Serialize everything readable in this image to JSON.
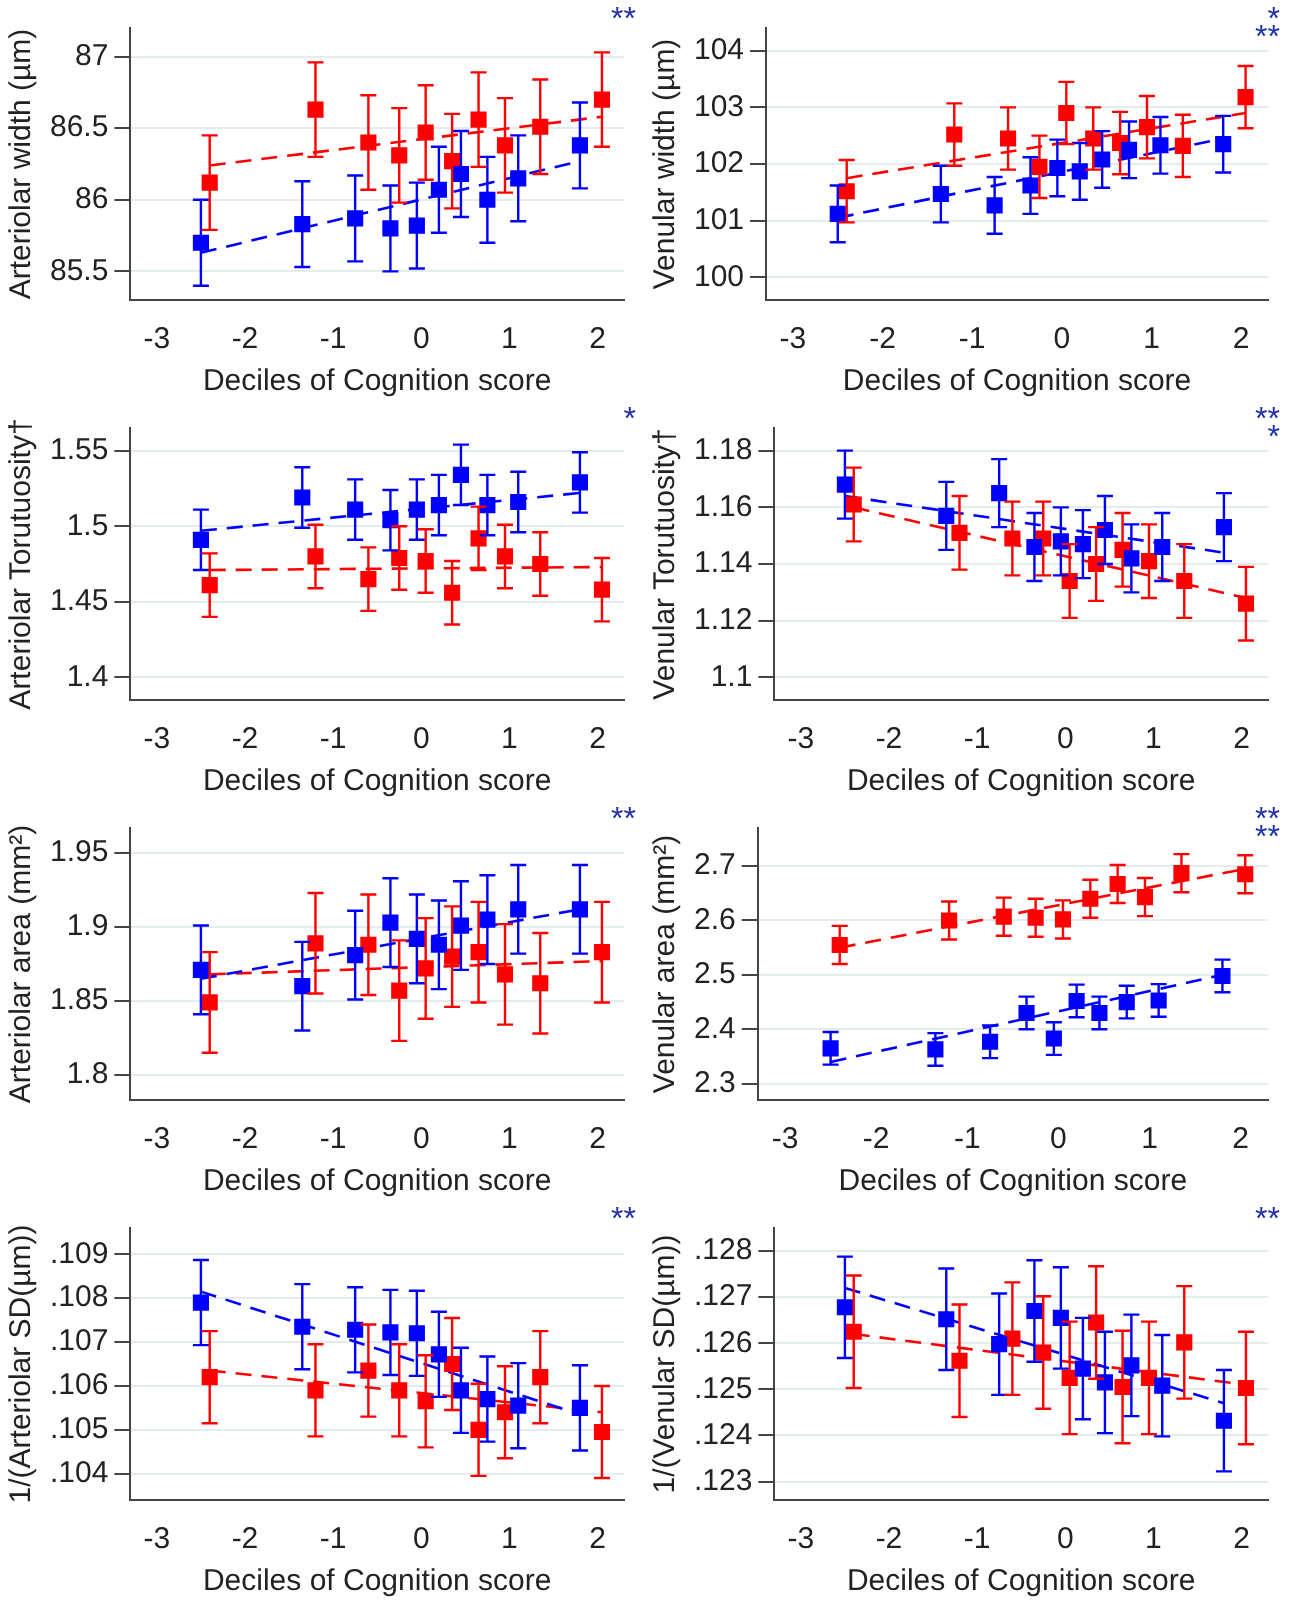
{
  "chart_data": [
    {
      "type": "scatter",
      "xlabel": "Deciles of Cognition score",
      "ylabel": "Arteriolar width (µm)",
      "xlim": [
        -3.3,
        2.3
      ],
      "xticks": [
        -3,
        -2,
        -1,
        0,
        1,
        2
      ],
      "ylim": [
        85.3,
        87.2
      ],
      "yticks": [
        85.5,
        86,
        86.5,
        87
      ],
      "grid": "y",
      "marker": "square",
      "legend": false,
      "annotations": [
        "**"
      ],
      "series": [
        {
          "color": "#0000ff",
          "x": [
            -2.5,
            -1.35,
            -0.75,
            -0.35,
            -0.05,
            0.2,
            0.45,
            0.75,
            1.1,
            1.8
          ],
          "values": [
            85.7,
            85.83,
            85.87,
            85.8,
            85.82,
            86.07,
            86.18,
            86.0,
            86.15,
            86.38
          ],
          "errors": [
            0.3,
            0.3,
            0.3,
            0.3,
            0.3,
            0.3,
            0.3,
            0.3,
            0.3,
            0.3
          ]
        },
        {
          "color": "#ff0000",
          "x": [
            -2.4,
            -1.2,
            -0.6,
            -0.25,
            0.05,
            0.35,
            0.65,
            0.95,
            1.35,
            2.05
          ],
          "values": [
            86.12,
            86.63,
            86.4,
            86.31,
            86.47,
            86.27,
            86.56,
            86.38,
            86.51,
            86.7
          ],
          "errors": [
            0.33,
            0.33,
            0.33,
            0.33,
            0.33,
            0.33,
            0.33,
            0.33,
            0.33,
            0.33
          ]
        },
        {
          "type": "line",
          "color": "#0000ff",
          "line_style": "dashed",
          "marker": "none",
          "x": [
            -2.5,
            1.8
          ],
          "values": [
            85.63,
            86.27
          ]
        },
        {
          "type": "line",
          "color": "#ff0000",
          "line_style": "dashed",
          "marker": "none",
          "x": [
            -2.4,
            2.05
          ],
          "values": [
            86.24,
            86.58
          ]
        }
      ]
    },
    {
      "type": "scatter",
      "xlabel": "Deciles of Cognition score",
      "ylabel": "Venular width (µm)",
      "xlim": [
        -3.3,
        2.3
      ],
      "xticks": [
        -3,
        -2,
        -1,
        0,
        1,
        2
      ],
      "ylim": [
        99.6,
        104.4
      ],
      "yticks": [
        100,
        101,
        102,
        103,
        104
      ],
      "grid": "y",
      "marker": "square",
      "legend": false,
      "annotations": [
        "*",
        "**"
      ],
      "series": [
        {
          "color": "#0000ff",
          "x": [
            -2.5,
            -1.35,
            -0.75,
            -0.35,
            -0.05,
            0.2,
            0.45,
            0.75,
            1.1,
            1.8
          ],
          "values": [
            101.12,
            101.47,
            101.27,
            101.62,
            101.93,
            101.87,
            102.08,
            102.25,
            102.33,
            102.35
          ],
          "errors": [
            0.5,
            0.5,
            0.5,
            0.5,
            0.5,
            0.5,
            0.5,
            0.5,
            0.5,
            0.5
          ]
        },
        {
          "color": "#ff0000",
          "x": [
            -2.4,
            -1.2,
            -0.6,
            -0.25,
            0.05,
            0.35,
            0.65,
            0.95,
            1.35,
            2.05
          ],
          "values": [
            101.52,
            102.52,
            102.45,
            101.95,
            102.9,
            102.45,
            102.37,
            102.65,
            102.32,
            103.18
          ],
          "errors": [
            0.55,
            0.55,
            0.55,
            0.55,
            0.55,
            0.55,
            0.55,
            0.55,
            0.55,
            0.55
          ]
        },
        {
          "type": "line",
          "color": "#0000ff",
          "line_style": "dashed",
          "marker": "none",
          "x": [
            -2.5,
            1.8
          ],
          "values": [
            101.05,
            102.45
          ]
        },
        {
          "type": "line",
          "color": "#ff0000",
          "line_style": "dashed",
          "marker": "none",
          "x": [
            -2.4,
            2.05
          ],
          "values": [
            101.75,
            102.9
          ]
        }
      ]
    },
    {
      "type": "scatter",
      "xlabel": "Deciles of Cognition score",
      "ylabel": "Arteriolar Torutuosity†",
      "xlim": [
        -3.3,
        2.3
      ],
      "xticks": [
        -3,
        -2,
        -1,
        0,
        1,
        2
      ],
      "ylim": [
        1.385,
        1.565
      ],
      "yticks": [
        1.4,
        1.45,
        1.5,
        1.55
      ],
      "grid": "y",
      "marker": "square",
      "legend": false,
      "annotations": [
        "*"
      ],
      "series": [
        {
          "color": "#0000ff",
          "x": [
            -2.5,
            -1.35,
            -0.75,
            -0.35,
            -0.05,
            0.2,
            0.45,
            0.75,
            1.1,
            1.8
          ],
          "values": [
            1.491,
            1.519,
            1.511,
            1.504,
            1.511,
            1.514,
            1.534,
            1.514,
            1.516,
            1.529
          ],
          "errors": [
            0.02,
            0.02,
            0.02,
            0.02,
            0.02,
            0.02,
            0.02,
            0.02,
            0.02,
            0.02
          ]
        },
        {
          "color": "#ff0000",
          "x": [
            -2.4,
            -1.2,
            -0.6,
            -0.25,
            0.05,
            0.35,
            0.65,
            0.95,
            1.35,
            2.05
          ],
          "values": [
            1.461,
            1.48,
            1.465,
            1.479,
            1.477,
            1.456,
            1.492,
            1.48,
            1.475,
            1.458
          ],
          "errors": [
            0.021,
            0.021,
            0.021,
            0.021,
            0.021,
            0.021,
            0.021,
            0.021,
            0.021,
            0.021
          ]
        },
        {
          "type": "line",
          "color": "#0000ff",
          "line_style": "dashed",
          "marker": "none",
          "x": [
            -2.5,
            1.8
          ],
          "values": [
            1.497,
            1.522
          ]
        },
        {
          "type": "line",
          "color": "#ff0000",
          "line_style": "dashed",
          "marker": "none",
          "x": [
            -2.4,
            2.05
          ],
          "values": [
            1.471,
            1.473
          ]
        }
      ]
    },
    {
      "type": "scatter",
      "xlabel": "Deciles of Cognition score",
      "ylabel": "Venular Torutuosity†",
      "xlim": [
        -3.3,
        2.3
      ],
      "xticks": [
        -3,
        -2,
        -1,
        0,
        1,
        2
      ],
      "ylim": [
        1.092,
        1.188
      ],
      "yticks": [
        1.1,
        1.12,
        1.14,
        1.16,
        1.18
      ],
      "grid": "y",
      "marker": "square",
      "legend": false,
      "annotations": [
        "**",
        "*"
      ],
      "series": [
        {
          "color": "#0000ff",
          "x": [
            -2.5,
            -1.35,
            -0.75,
            -0.35,
            -0.05,
            0.2,
            0.45,
            0.75,
            1.1,
            1.8
          ],
          "values": [
            1.168,
            1.157,
            1.165,
            1.146,
            1.148,
            1.147,
            1.152,
            1.142,
            1.146,
            1.153
          ],
          "errors": [
            0.012,
            0.012,
            0.012,
            0.012,
            0.012,
            0.012,
            0.012,
            0.012,
            0.012,
            0.012
          ]
        },
        {
          "color": "#ff0000",
          "x": [
            -2.4,
            -1.2,
            -0.6,
            -0.25,
            0.05,
            0.35,
            0.65,
            0.95,
            1.35,
            2.05
          ],
          "values": [
            1.161,
            1.151,
            1.149,
            1.149,
            1.134,
            1.14,
            1.145,
            1.141,
            1.134,
            1.126
          ],
          "errors": [
            0.013,
            0.013,
            0.013,
            0.013,
            0.013,
            0.013,
            0.013,
            0.013,
            0.013,
            0.013
          ]
        },
        {
          "type": "line",
          "color": "#0000ff",
          "line_style": "dashed",
          "marker": "none",
          "x": [
            -2.5,
            1.8
          ],
          "values": [
            1.164,
            1.144
          ]
        },
        {
          "type": "line",
          "color": "#ff0000",
          "line_style": "dashed",
          "marker": "none",
          "x": [
            -2.4,
            2.05
          ],
          "values": [
            1.16,
            1.128
          ]
        }
      ]
    },
    {
      "type": "scatter",
      "xlabel": "Deciles of Cognition score",
      "ylabel": "Arteriolar area (mm²)",
      "xlim": [
        -3.3,
        2.3
      ],
      "xticks": [
        -3,
        -2,
        -1,
        0,
        1,
        2
      ],
      "ylim": [
        1.783,
        1.967
      ],
      "yticks": [
        1.8,
        1.85,
        1.9,
        1.95
      ],
      "grid": "y",
      "marker": "square",
      "legend": false,
      "annotations": [
        "**"
      ],
      "series": [
        {
          "color": "#0000ff",
          "x": [
            -2.5,
            -1.35,
            -0.75,
            -0.35,
            -0.05,
            0.2,
            0.45,
            0.75,
            1.1,
            1.8
          ],
          "values": [
            1.871,
            1.86,
            1.881,
            1.903,
            1.892,
            1.888,
            1.901,
            1.905,
            1.912,
            1.912
          ],
          "errors": [
            0.03,
            0.03,
            0.03,
            0.03,
            0.03,
            0.03,
            0.03,
            0.03,
            0.03,
            0.03
          ]
        },
        {
          "color": "#ff0000",
          "x": [
            -2.4,
            -1.2,
            -0.6,
            -0.25,
            0.05,
            0.35,
            0.65,
            0.95,
            1.35,
            2.05
          ],
          "values": [
            1.849,
            1.889,
            1.888,
            1.857,
            1.872,
            1.88,
            1.883,
            1.868,
            1.862,
            1.883
          ],
          "errors": [
            0.034,
            0.034,
            0.034,
            0.034,
            0.034,
            0.034,
            0.034,
            0.034,
            0.034,
            0.034
          ]
        },
        {
          "type": "line",
          "color": "#0000ff",
          "line_style": "dashed",
          "marker": "none",
          "x": [
            -2.5,
            1.8
          ],
          "values": [
            1.865,
            1.912
          ]
        },
        {
          "type": "line",
          "color": "#ff0000",
          "line_style": "dashed",
          "marker": "none",
          "x": [
            -2.4,
            2.05
          ],
          "values": [
            1.868,
            1.877
          ]
        }
      ]
    },
    {
      "type": "scatter",
      "xlabel": "Deciles of Cognition score",
      "ylabel": "Venular area (mm²)",
      "xlim": [
        -3.3,
        2.3
      ],
      "xticks": [
        -3,
        -2,
        -1,
        0,
        1,
        2
      ],
      "ylim": [
        2.27,
        2.77
      ],
      "yticks": [
        2.3,
        2.4,
        2.5,
        2.6,
        2.7
      ],
      "grid": "y",
      "marker": "square",
      "legend": false,
      "annotations": [
        "**",
        "**"
      ],
      "series": [
        {
          "color": "#0000ff",
          "x": [
            -2.5,
            -1.35,
            -0.75,
            -0.35,
            -0.05,
            0.2,
            0.45,
            0.75,
            1.1,
            1.8
          ],
          "values": [
            2.365,
            2.363,
            2.377,
            2.43,
            2.383,
            2.452,
            2.43,
            2.45,
            2.453,
            2.498
          ],
          "errors": [
            0.03,
            0.03,
            0.03,
            0.03,
            0.03,
            0.03,
            0.03,
            0.03,
            0.03,
            0.03
          ]
        },
        {
          "color": "#ff0000",
          "x": [
            -2.4,
            -1.2,
            -0.6,
            -0.25,
            0.05,
            0.35,
            0.65,
            0.95,
            1.35,
            2.05
          ],
          "values": [
            2.555,
            2.6,
            2.607,
            2.605,
            2.602,
            2.64,
            2.667,
            2.643,
            2.687,
            2.685
          ],
          "errors": [
            0.035,
            0.035,
            0.035,
            0.035,
            0.035,
            0.035,
            0.035,
            0.035,
            0.035,
            0.035
          ]
        },
        {
          "type": "line",
          "color": "#0000ff",
          "line_style": "dashed",
          "marker": "none",
          "x": [
            -2.5,
            1.8
          ],
          "values": [
            2.34,
            2.5
          ]
        },
        {
          "type": "line",
          "color": "#ff0000",
          "line_style": "dashed",
          "marker": "none",
          "x": [
            -2.4,
            2.05
          ],
          "values": [
            2.55,
            2.695
          ]
        }
      ]
    },
    {
      "type": "scatter",
      "xlabel": "Deciles of Cognition score",
      "ylabel": "1/(Arteriolar SD(µm))",
      "xlim": [
        -3.3,
        2.3
      ],
      "xticks": [
        -3,
        -2,
        -1,
        0,
        1,
        2
      ],
      "ylim": [
        0.1034,
        0.1096
      ],
      "yticks": [
        {
          "value": 0.104,
          "label": ".104"
        },
        {
          "value": 0.105,
          "label": ".105"
        },
        {
          "value": 0.106,
          "label": ".106"
        },
        {
          "value": 0.107,
          "label": ".107"
        },
        {
          "value": 0.108,
          "label": ".108"
        },
        {
          "value": 0.109,
          "label": ".109"
        }
      ],
      "grid": "y",
      "marker": "square",
      "legend": false,
      "annotations": [
        "**"
      ],
      "series": [
        {
          "color": "#0000ff",
          "x": [
            -2.5,
            -1.35,
            -0.75,
            -0.35,
            -0.05,
            0.2,
            0.45,
            0.75,
            1.1,
            1.8
          ],
          "values": [
            0.1079,
            0.10735,
            0.10728,
            0.10722,
            0.1072,
            0.10672,
            0.1059,
            0.1057,
            0.10555,
            0.1055
          ],
          "errors": [
            0.00097,
            0.00097,
            0.00097,
            0.00097,
            0.00097,
            0.00097,
            0.00097,
            0.00097,
            0.00097,
            0.00097
          ]
        },
        {
          "color": "#ff0000",
          "x": [
            -2.4,
            -1.2,
            -0.6,
            -0.25,
            0.05,
            0.35,
            0.65,
            0.95,
            1.35,
            2.05
          ],
          "values": [
            0.1062,
            0.1059,
            0.10635,
            0.1059,
            0.10565,
            0.1065,
            0.105,
            0.1054,
            0.1062,
            0.10495
          ],
          "errors": [
            0.00105,
            0.00105,
            0.00105,
            0.00105,
            0.00105,
            0.00105,
            0.00105,
            0.00105,
            0.00105,
            0.00105
          ]
        },
        {
          "type": "line",
          "color": "#0000ff",
          "line_style": "dashed",
          "marker": "none",
          "x": [
            -2.5,
            1.8
          ],
          "values": [
            0.10815,
            0.10535
          ]
        },
        {
          "type": "line",
          "color": "#ff0000",
          "line_style": "dashed",
          "marker": "none",
          "x": [
            -2.4,
            2.05
          ],
          "values": [
            0.10635,
            0.1054
          ]
        }
      ]
    },
    {
      "type": "scatter",
      "xlabel": "Deciles of Cognition score",
      "ylabel": "1/(Venular SD(µm))",
      "xlim": [
        -3.3,
        2.3
      ],
      "xticks": [
        -3,
        -2,
        -1,
        0,
        1,
        2
      ],
      "ylim": [
        0.1226,
        0.1285
      ],
      "yticks": [
        {
          "value": 0.123,
          "label": ".123"
        },
        {
          "value": 0.124,
          "label": ".124"
        },
        {
          "value": 0.125,
          "label": ".125"
        },
        {
          "value": 0.126,
          "label": ".126"
        },
        {
          "value": 0.127,
          "label": ".127"
        },
        {
          "value": 0.128,
          "label": ".128"
        }
      ],
      "grid": "y",
      "marker": "square",
      "legend": false,
      "annotations": [
        "**"
      ],
      "series": [
        {
          "color": "#0000ff",
          "x": [
            -2.5,
            -1.35,
            -0.75,
            -0.35,
            -0.05,
            0.2,
            0.45,
            0.75,
            1.1,
            1.8
          ],
          "values": [
            0.12678,
            0.12652,
            0.12598,
            0.1267,
            0.12655,
            0.12545,
            0.12515,
            0.12552,
            0.12508,
            0.12432
          ],
          "errors": [
            0.0011,
            0.0011,
            0.0011,
            0.0011,
            0.0011,
            0.0011,
            0.0011,
            0.0011,
            0.0011,
            0.0011
          ]
        },
        {
          "color": "#ff0000",
          "x": [
            -2.4,
            -1.2,
            -0.6,
            -0.25,
            0.05,
            0.35,
            0.65,
            0.95,
            1.35,
            2.05
          ],
          "values": [
            0.12625,
            0.12562,
            0.1261,
            0.1258,
            0.12525,
            0.12645,
            0.12505,
            0.12525,
            0.12602,
            0.12503
          ],
          "errors": [
            0.00122,
            0.00122,
            0.00122,
            0.00122,
            0.00122,
            0.00122,
            0.00122,
            0.00122,
            0.00122,
            0.00122
          ]
        },
        {
          "type": "line",
          "color": "#0000ff",
          "line_style": "dashed",
          "marker": "none",
          "x": [
            -2.5,
            1.8
          ],
          "values": [
            0.1272,
            0.1247
          ]
        },
        {
          "type": "line",
          "color": "#ff0000",
          "line_style": "dashed",
          "marker": "none",
          "x": [
            -2.4,
            2.05
          ],
          "values": [
            0.1262,
            0.1251
          ]
        }
      ]
    }
  ]
}
